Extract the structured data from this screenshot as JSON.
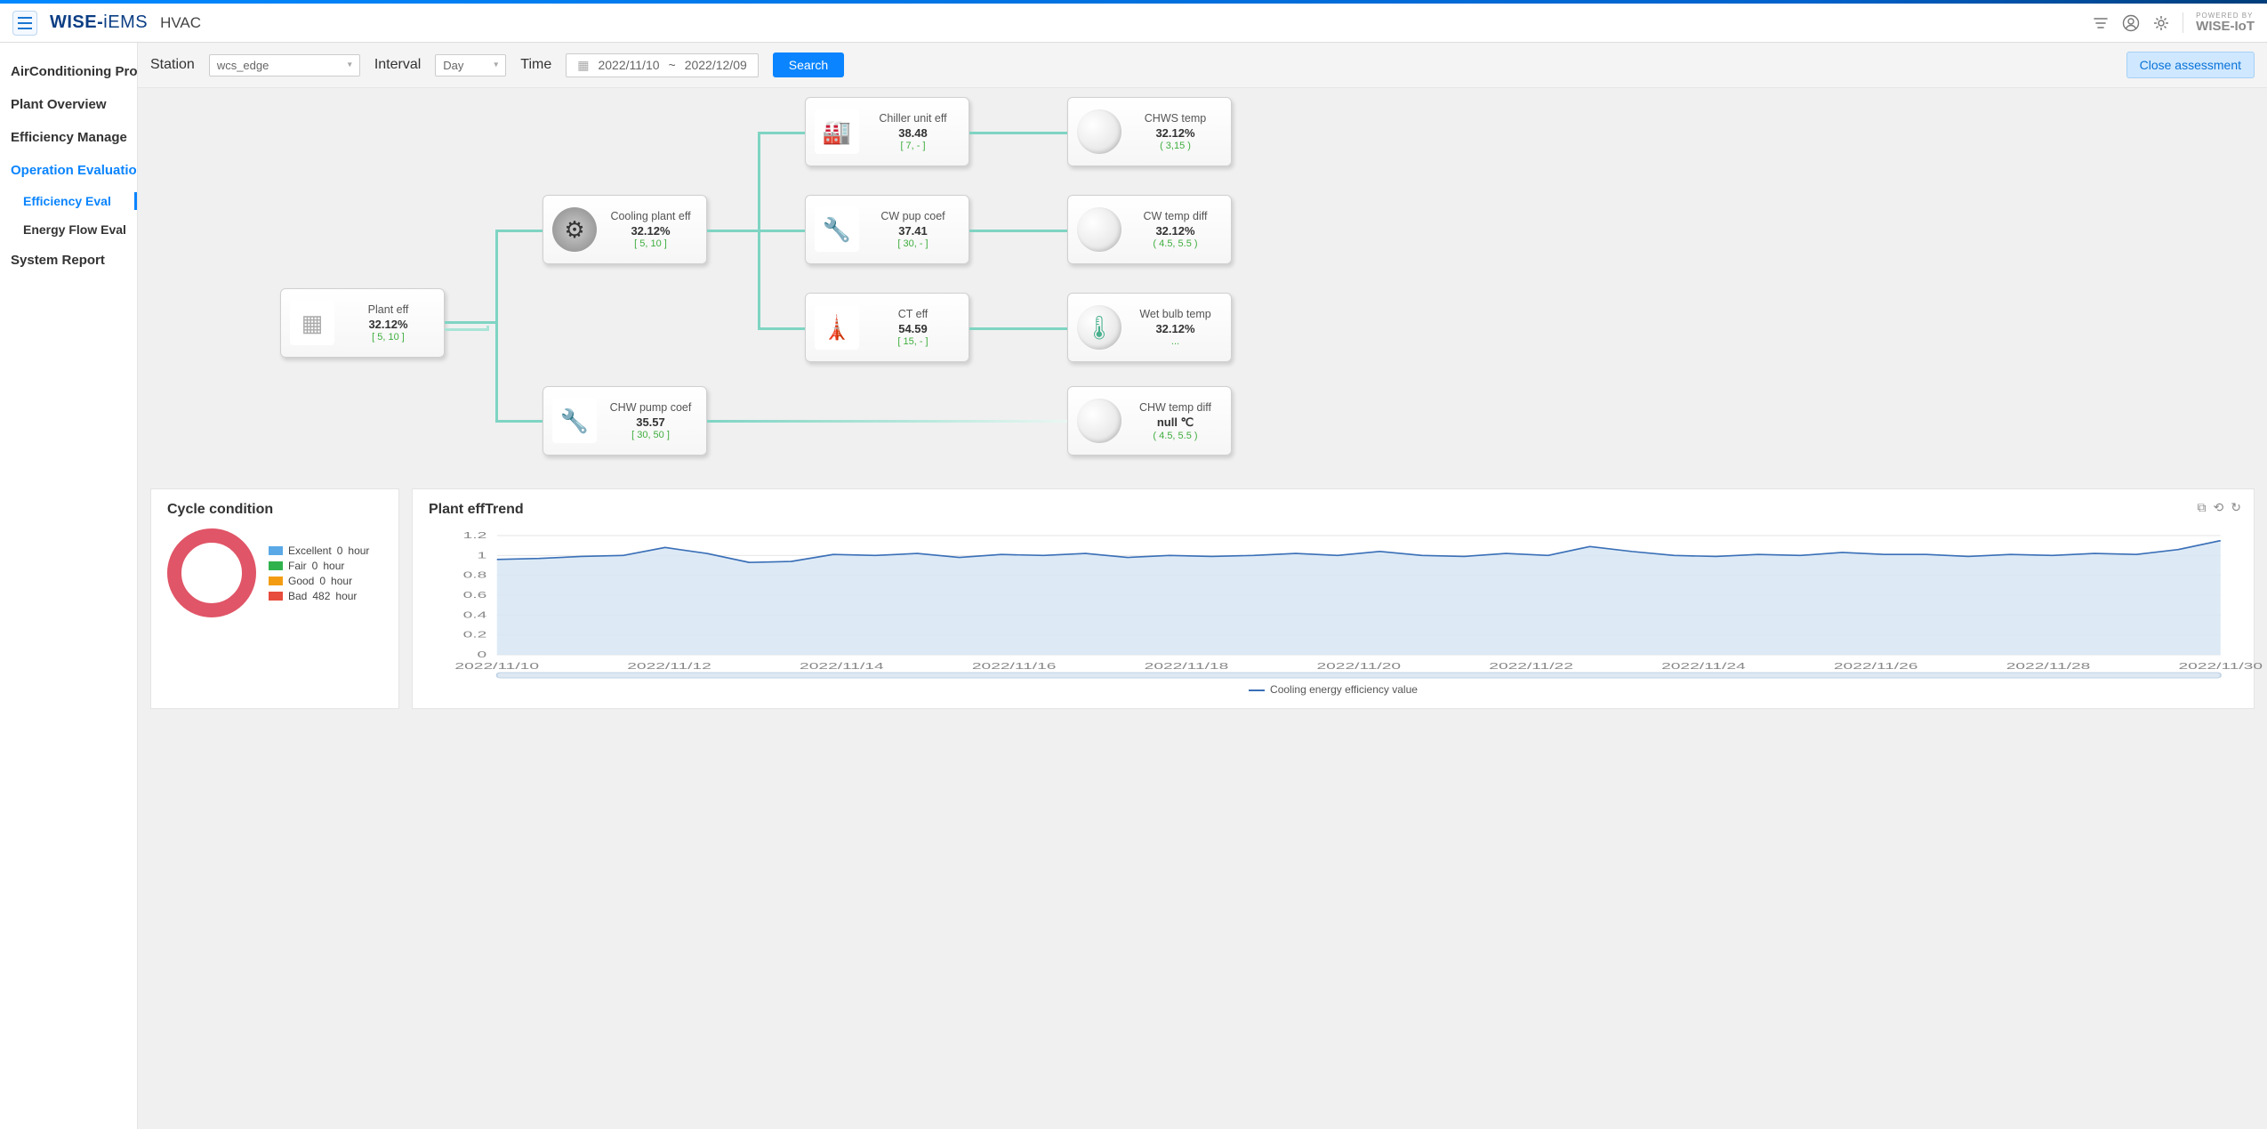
{
  "header": {
    "brand_bold": "WISE-",
    "brand_thin": "iEMS",
    "app_title": "HVAC",
    "powered_top": "POWERED BY",
    "powered_brand": "WISE-IoT"
  },
  "sidebar": {
    "items": [
      {
        "label": "AirConditioning Pro",
        "active": false
      },
      {
        "label": "Plant Overview",
        "active": false
      },
      {
        "label": "Efficiency Manage",
        "active": false
      },
      {
        "label": "Operation Evaluatio",
        "active": true,
        "children": [
          {
            "label": "Efficiency Eval",
            "active": true
          },
          {
            "label": "Energy Flow Eval",
            "active": false
          }
        ]
      },
      {
        "label": "System Report",
        "active": false
      }
    ]
  },
  "filters": {
    "station_label": "Station",
    "station_value": "wcs_edge",
    "interval_label": "Interval",
    "interval_value": "Day",
    "time_label": "Time",
    "date_from": "2022/11/10",
    "date_sep": "~",
    "date_to": "2022/12/09",
    "search_btn": "Search",
    "close_btn": "Close assessment"
  },
  "diagram": {
    "colors": {
      "edge": "#7fd4c3",
      "edge_light": "#a9e4d7"
    },
    "nodes": {
      "plant": {
        "title": "Plant eff",
        "value": "32.12%",
        "range": "[ 5, 10 ]",
        "icon": "vent"
      },
      "cooling": {
        "title": "Cooling plant eff",
        "value": "32.12%",
        "range": "[ 5, 10 ]",
        "icon": "gear"
      },
      "chwpump": {
        "title": "CHW pump coef",
        "value": "35.57",
        "range": "[ 30, 50 ]",
        "icon": "pump"
      },
      "chiller": {
        "title": "Chiller unit eff",
        "value": "38.48",
        "range": "[ 7, - ]",
        "icon": "chiller"
      },
      "cwpump": {
        "title": "CW pup coef",
        "value": "37.41",
        "range": "[ 30, - ]",
        "icon": "pump"
      },
      "ct": {
        "title": "CT eff",
        "value": "54.59",
        "range": "[ 15, - ]",
        "icon": "tower"
      },
      "chws": {
        "title": "CHWS temp",
        "value": "32.12%",
        "range": "( 3,15 )",
        "icon": "circle"
      },
      "cwdiff": {
        "title": "CW temp diff",
        "value": "32.12%",
        "range": "( 4.5, 5.5 )",
        "icon": "circle"
      },
      "wetbulb": {
        "title": "Wet bulb temp",
        "value": "32.12%",
        "range": "...",
        "icon": "therm"
      },
      "chwdiff": {
        "title": "CHW temp diff",
        "value": "null ℃",
        "range": "( 4.5, 5.5 )",
        "icon": "circle"
      }
    }
  },
  "cycle": {
    "title": "Cycle condition",
    "entries": [
      {
        "label": "Excellent",
        "value": 0,
        "unit": "hour",
        "color": "#5aa9e6"
      },
      {
        "label": "Fair",
        "value": 0,
        "unit": "hour",
        "color": "#2fb24c"
      },
      {
        "label": "Good",
        "value": 0,
        "unit": "hour",
        "color": "#f39c12"
      },
      {
        "label": "Bad",
        "value": 482,
        "unit": "hour",
        "color": "#e74c3c"
      }
    ],
    "donut_color": "#e05567"
  },
  "trend": {
    "title": "Plant effTrend",
    "legend": "Cooling energy efficiency value",
    "series_color": "#3a6fb7",
    "fill_color": "#d7e6f5",
    "grid_color": "#e6e6e6",
    "ylim": [
      0,
      1.2
    ],
    "ytick_step": 0.2,
    "x_labels": [
      "2022/11/10",
      "2022/11/12",
      "2022/11/14",
      "2022/11/16",
      "2022/11/18",
      "2022/11/20",
      "2022/11/22",
      "2022/11/24",
      "2022/11/26",
      "2022/11/28",
      "2022/11/30"
    ],
    "values": [
      0.96,
      0.97,
      0.99,
      1.0,
      1.08,
      1.02,
      0.93,
      0.94,
      1.01,
      1.0,
      1.02,
      0.98,
      1.01,
      1.0,
      1.02,
      0.98,
      1.0,
      0.99,
      1.0,
      1.02,
      1.0,
      1.04,
      1.0,
      0.99,
      1.02,
      1.0,
      1.09,
      1.04,
      1.0,
      0.99,
      1.01,
      1.0,
      1.03,
      1.01,
      1.01,
      0.99,
      1.01,
      1.0,
      1.02,
      1.01,
      1.06,
      1.15
    ]
  }
}
